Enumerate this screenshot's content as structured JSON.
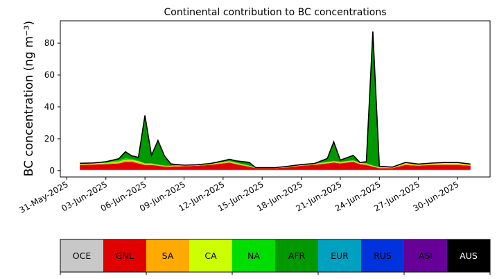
{
  "chart_data": {
    "type": "area",
    "stacked": true,
    "title": "Continental contribution to BC concentrations",
    "xlabel": "",
    "ylabel": "BC concentration (ng m⁻³)",
    "ylim": [
      -4,
      94
    ],
    "xlim": [
      "2025-05-30T12:00",
      "2025-07-02T12:00"
    ],
    "yticks": [
      0,
      20,
      40,
      60,
      80
    ],
    "xticks": [
      "31-May-2025",
      "03-Jun-2025",
      "06-Jun-2025",
      "09-Jun-2025",
      "12-Jun-2025",
      "15-Jun-2025",
      "18-Jun-2025",
      "21-Jun-2025",
      "24-Jun-2025",
      "27-Jun-2025",
      "30-Jun-2025"
    ],
    "x": [
      "2025-06-01",
      "2025-06-02",
      "2025-06-03",
      "2025-06-04",
      "2025-06-04T12:00",
      "2025-06-05",
      "2025-06-05T12:00",
      "2025-06-06",
      "2025-06-06T12:00",
      "2025-06-07",
      "2025-06-07T12:00",
      "2025-06-08",
      "2025-06-09",
      "2025-06-10",
      "2025-06-11",
      "2025-06-12",
      "2025-06-12T12:00",
      "2025-06-13",
      "2025-06-14",
      "2025-06-14T12:00",
      "2025-06-15",
      "2025-06-16",
      "2025-06-17",
      "2025-06-18",
      "2025-06-19",
      "2025-06-20",
      "2025-06-20T12:00",
      "2025-06-21",
      "2025-06-22",
      "2025-06-22T12:00",
      "2025-06-23",
      "2025-06-23T12:00",
      "2025-06-24",
      "2025-06-25",
      "2025-06-26",
      "2025-06-27",
      "2025-06-28",
      "2025-06-29",
      "2025-06-30",
      "2025-07-01"
    ],
    "series": [
      {
        "name": "OCE",
        "color": "#c8c8c8",
        "values": [
          0.5,
          0.5,
          0.5,
          0.5,
          0.5,
          0.5,
          0.5,
          0.5,
          0.5,
          0.5,
          0.5,
          0.5,
          0.5,
          0.5,
          0.5,
          0.5,
          0.5,
          0.5,
          0.5,
          0.5,
          0.5,
          0.5,
          0.5,
          0.5,
          0.5,
          0.5,
          0.5,
          0.5,
          0.5,
          0.5,
          0.5,
          0.5,
          0.5,
          0.5,
          0.5,
          0.5,
          0.5,
          0.5,
          0.5,
          0.5
        ]
      },
      {
        "name": "GNL",
        "color": "#e00000",
        "values": [
          3,
          3.2,
          3.5,
          4,
          5,
          5,
          4,
          3,
          3,
          2.5,
          2,
          2,
          2.2,
          2.5,
          3,
          4,
          4.5,
          3.5,
          2,
          1,
          1,
          1,
          1.5,
          2.5,
          3,
          4,
          4.5,
          4,
          5,
          3.5,
          3,
          2,
          1,
          1,
          3,
          2.5,
          3,
          3,
          3,
          2.5
        ]
      },
      {
        "name": "SA",
        "color": "#ffaa00",
        "values": [
          0.5,
          0.5,
          0.5,
          0.7,
          0.8,
          0.8,
          0.8,
          0.5,
          0.5,
          0.4,
          0.3,
          0.3,
          0.3,
          0.3,
          0.4,
          0.5,
          0.5,
          0.5,
          0.3,
          0.2,
          0.2,
          0.2,
          0.3,
          0.4,
          0.4,
          0.5,
          0.5,
          0.5,
          0.5,
          0.5,
          0.5,
          0.4,
          0.3,
          0.3,
          0.8,
          0.5,
          0.6,
          0.8,
          0.8,
          0.5
        ]
      },
      {
        "name": "CA",
        "color": "#ccff00",
        "values": [
          0.3,
          0.3,
          0.3,
          0.5,
          0.5,
          0.5,
          0.5,
          0.3,
          0.3,
          0.2,
          0.2,
          0.2,
          0.2,
          0.2,
          0.2,
          0.3,
          0.3,
          0.3,
          0.2,
          0.1,
          0.1,
          0.1,
          0.2,
          0.2,
          0.2,
          0.3,
          0.3,
          0.3,
          0.3,
          0.3,
          0.3,
          0.2,
          0.2,
          0.2,
          0.5,
          0.3,
          0.3,
          0.5,
          0.5,
          0.3
        ]
      },
      {
        "name": "NA",
        "color": "#00dd00",
        "values": [
          0.3,
          0.3,
          0.3,
          0.8,
          1,
          0.5,
          0.5,
          0.3,
          0.3,
          0.3,
          0.2,
          0.2,
          0.2,
          0.2,
          0.3,
          0.3,
          0.3,
          0.3,
          0.2,
          0.1,
          0.1,
          0.1,
          0.2,
          0.2,
          0.3,
          0.3,
          0.3,
          0.3,
          0.3,
          0.3,
          0.3,
          0.2,
          0.2,
          0.2,
          0.3,
          0.3,
          0.3,
          0.3,
          0.3,
          0.3
        ]
      },
      {
        "name": "AFR",
        "color": "#009900",
        "values": [
          0,
          0,
          0.5,
          1,
          4,
          2,
          2,
          30,
          5,
          15,
          6,
          1,
          0,
          0,
          0,
          0.5,
          1,
          1,
          2,
          0,
          0,
          0,
          0,
          0,
          0,
          2,
          12,
          1,
          3,
          0,
          1,
          84,
          0.5,
          0,
          0,
          0,
          0,
          0,
          0,
          0
        ]
      },
      {
        "name": "EUR",
        "color": "#00a0c0",
        "values": [
          0,
          0,
          0,
          0,
          0,
          0,
          0,
          0,
          0,
          0,
          0,
          0,
          0,
          0,
          0,
          0,
          0,
          0,
          0,
          0,
          0,
          0,
          0,
          0,
          0,
          0,
          0,
          0,
          0,
          0,
          0,
          0,
          0,
          0,
          0,
          0,
          0,
          0,
          0,
          0
        ]
      },
      {
        "name": "RUS",
        "color": "#0033dd",
        "values": [
          0,
          0,
          0,
          0,
          0,
          0,
          0,
          0,
          0,
          0,
          0,
          0,
          0,
          0,
          0,
          0,
          0,
          0,
          0,
          0,
          0,
          0,
          0,
          0,
          0,
          0,
          0,
          0,
          0,
          0,
          0,
          0,
          0,
          0,
          0,
          0,
          0,
          0,
          0,
          0
        ]
      },
      {
        "name": "ASI",
        "color": "#660099",
        "values": [
          0,
          0,
          0,
          0,
          0,
          0,
          0,
          0,
          0,
          0,
          0,
          0,
          0,
          0,
          0,
          0,
          0,
          0,
          0,
          0,
          0,
          0,
          0,
          0,
          0,
          0,
          0,
          0,
          0,
          0,
          0,
          0,
          0,
          0,
          0,
          0,
          0,
          0,
          0,
          0
        ]
      },
      {
        "name": "AUS",
        "color": "#000000",
        "values": [
          0,
          0,
          0,
          0,
          0,
          0,
          0,
          0,
          0,
          0,
          0,
          0,
          0,
          0,
          0,
          0,
          0,
          0,
          0,
          0,
          0,
          0,
          0,
          0,
          0,
          0,
          0,
          0,
          0,
          0,
          0,
          0,
          0,
          0,
          0,
          0,
          0,
          0,
          0,
          0
        ]
      }
    ],
    "legend": {
      "placement": "bottom",
      "entries": [
        {
          "label": "OCE",
          "color": "#c8c8c8",
          "text_color": "#000000"
        },
        {
          "label": "GNL",
          "color": "#e00000",
          "text_color": "#000000"
        },
        {
          "label": "SA",
          "color": "#ffaa00",
          "text_color": "#000000"
        },
        {
          "label": "CA",
          "color": "#ccff00",
          "text_color": "#000000"
        },
        {
          "label": "NA",
          "color": "#00dd00",
          "text_color": "#000000"
        },
        {
          "label": "AFR",
          "color": "#009900",
          "text_color": "#000000"
        },
        {
          "label": "EUR",
          "color": "#00a0c0",
          "text_color": "#000000"
        },
        {
          "label": "RUS",
          "color": "#0033dd",
          "text_color": "#000000"
        },
        {
          "label": "ASI",
          "color": "#660099",
          "text_color": "#000000"
        },
        {
          "label": "AUS",
          "color": "#000000",
          "text_color": "#ffffff"
        }
      ]
    },
    "grid": false,
    "total_line_color": "#000000"
  }
}
